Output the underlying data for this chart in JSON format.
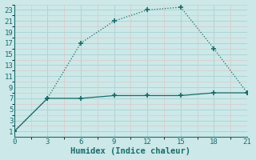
{
  "line1_x": [
    0,
    3,
    6,
    9,
    12,
    15,
    18,
    21
  ],
  "line1_y": [
    1,
    7,
    17,
    21,
    23,
    23.5,
    16,
    8
  ],
  "line2_x": [
    0,
    3,
    6,
    9,
    12,
    15,
    18,
    21
  ],
  "line2_y": [
    1,
    7,
    7,
    7.5,
    7.5,
    7.5,
    8.0,
    8
  ],
  "line_color": "#1a6b6b",
  "bg_color": "#cce8e8",
  "grid_color_major": "#b0d4d4",
  "grid_color_minor": "#e0f0f0",
  "xlabel": "Humidex (Indice chaleur)",
  "xlim": [
    0,
    21
  ],
  "ylim": [
    0,
    24
  ],
  "xticks": [
    0,
    3,
    6,
    9,
    12,
    15,
    18,
    21
  ],
  "yticks": [
    1,
    3,
    5,
    7,
    9,
    11,
    13,
    15,
    17,
    19,
    21,
    23
  ],
  "xlabel_fontsize": 7.5,
  "tick_fontsize": 6.5
}
